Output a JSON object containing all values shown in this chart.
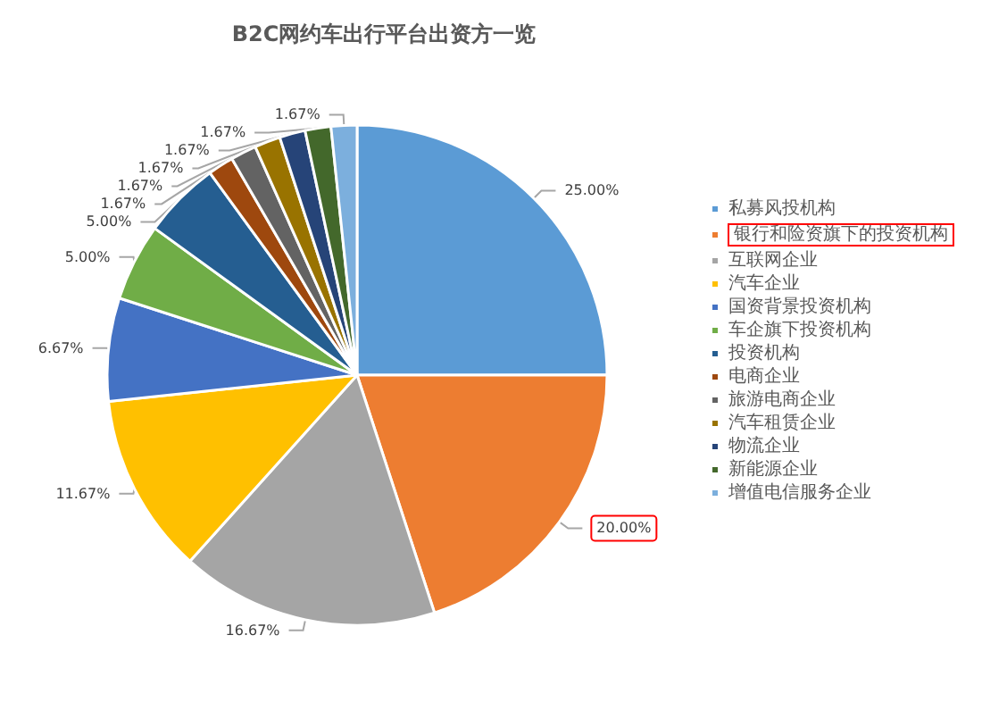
{
  "chart_data": {
    "type": "pie",
    "title": "B2C网约车出行平台出资方一览",
    "categories": [
      "私募风投机构",
      "银行和险资旗下的投资机构",
      "互联网企业",
      "汽车企业",
      "国资背景投资机构",
      "车企旗下投资机构",
      "投资机构",
      "电商企业",
      "旅游电商企业",
      "汽车租赁企业",
      "物流企业",
      "新能源企业",
      "增值电信服务企业"
    ],
    "values": [
      25,
      20,
      16.67,
      11.67,
      6.67,
      5,
      5,
      1.67,
      1.67,
      1.67,
      1.67,
      1.67,
      1.67
    ],
    "value_labels": [
      "25.00%",
      "20.00%",
      "16.67%",
      "11.67%",
      "6.67%",
      "5.00%",
      "5.00%",
      "1.67%",
      "1.67%",
      "1.67%",
      "1.67%",
      "1.67%",
      "1.67%"
    ],
    "colors": [
      "#5b9bd5",
      "#ed7d31",
      "#a5a5a5",
      "#ffc000",
      "#4472c4",
      "#70ad47",
      "#255e91",
      "#9e480e",
      "#636363",
      "#997300",
      "#264478",
      "#43682b",
      "#7cafdd"
    ],
    "legend": "right"
  }
}
